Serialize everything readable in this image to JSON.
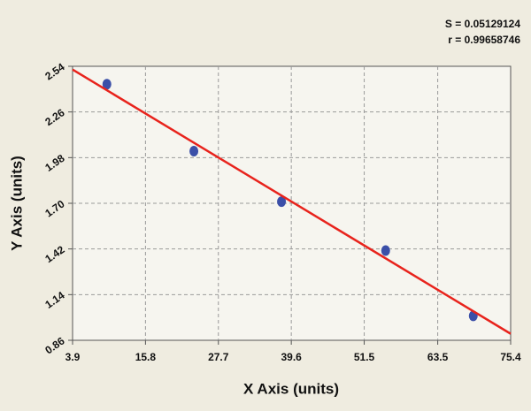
{
  "chart_data": {
    "type": "scatter",
    "x_label": "X Axis (units)",
    "y_label": "Y Axis (units)",
    "annotations": [
      "S = 0.05129124",
      "r = 0.99658746"
    ],
    "series": [
      {
        "kind": "points",
        "color": "#3b4fa8",
        "x": [
          9.5,
          23.7,
          38.0,
          55.0,
          69.3
        ],
        "values": [
          2.43,
          2.02,
          1.71,
          1.41,
          1.01
        ]
      },
      {
        "kind": "line",
        "color": "#e8231c",
        "x": [
          3.9,
          75.4
        ],
        "values": [
          2.52,
          0.9
        ]
      }
    ],
    "xlim": [
      3.9,
      75.4
    ],
    "xticks": [
      3.9,
      15.8,
      27.7,
      39.6,
      51.5,
      63.5,
      75.4
    ],
    "ylim": [
      0.86,
      2.54
    ],
    "yticks": [
      0.86,
      1.14,
      1.42,
      {
        "value": 1.7,
        "label": "1.70"
      },
      1.98,
      2.26,
      2.54
    ],
    "grid": true
  }
}
